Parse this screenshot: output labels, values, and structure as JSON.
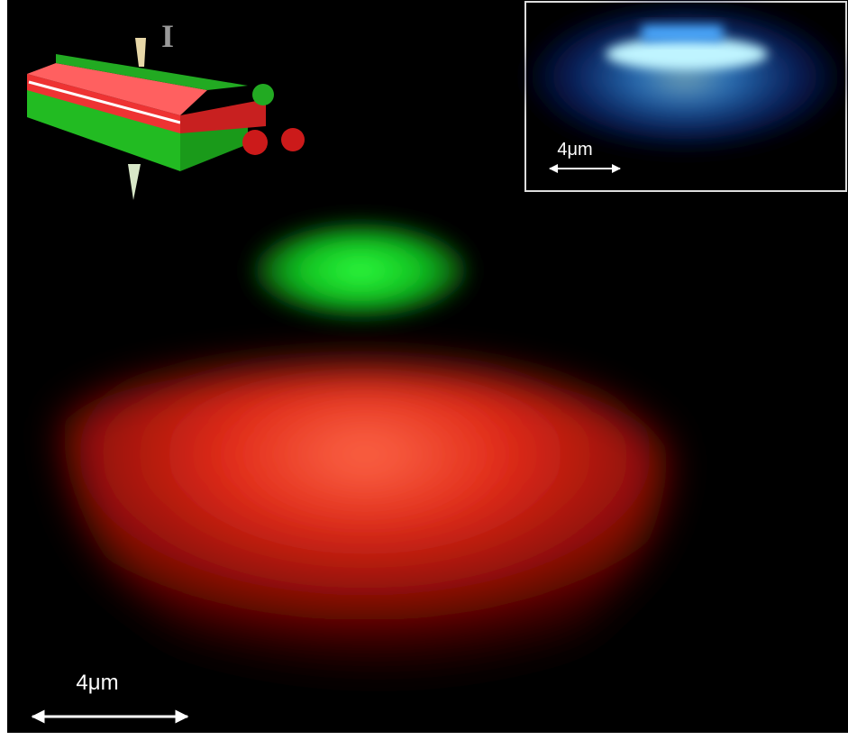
{
  "scale_bar": {
    "label": "4μm"
  },
  "inset": {
    "scale_bar": {
      "label": "4μm"
    }
  },
  "schematic": {
    "current_label": "I"
  }
}
